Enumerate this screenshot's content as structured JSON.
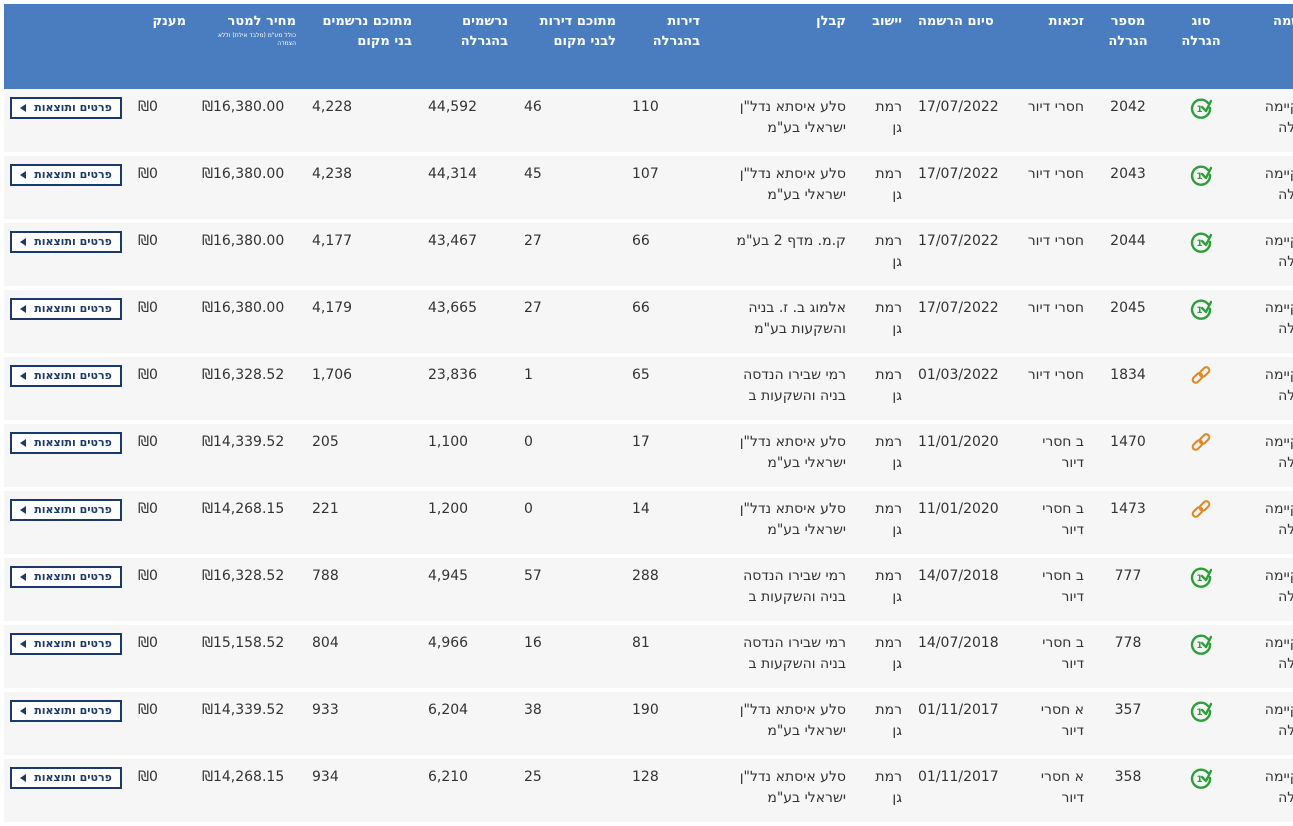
{
  "headers": {
    "registration": "הרשמה",
    "lottery_type": "סוג הגרלה",
    "lottery_number": "מספר הגרלה",
    "eligibility": "זכאות",
    "registration_end": "סיום הרשמה",
    "city": "יישוב",
    "contractor": "קבלן",
    "apartments": "דירות בהגרלה",
    "local_apartments": "מתוכם דירות לבני מקום",
    "registrants": "נרשמים בהגרלה",
    "local_registrants": "מתוכם נרשמים בני מקום",
    "price": "מחיר למטר",
    "price_note": "כולל מע\"מ (מלבד אילת) וללא הצמדה",
    "grant": "מענק"
  },
  "button_label": "פרטים ותוצאות",
  "colors": {
    "header_bg": "#4a7cc0",
    "check_icon": "#2e9e3a",
    "link_icon": "#e08a2a",
    "button_border": "#1b3a6b"
  },
  "rows": [
    {
      "status": "התקיימה הגרלה",
      "icon": "check-one-icon",
      "lot": "2042",
      "elig": "חסרי דיור",
      "end": "17/07/2022",
      "city": "רמת גן",
      "contractor": "סלע איסתא נדל\"ן ישראלי בע\"מ",
      "apts": "110",
      "local": "46",
      "regs": "44,592",
      "locregs": "4,228",
      "price": "₪16,380.00",
      "grant": "₪0"
    },
    {
      "status": "התקיימה הגרלה",
      "icon": "check-one-icon",
      "lot": "2043",
      "elig": "חסרי דיור",
      "end": "17/07/2022",
      "city": "רמת גן",
      "contractor": "סלע איסתא נדל\"ן ישראלי בע\"מ",
      "apts": "107",
      "local": "45",
      "regs": "44,314",
      "locregs": "4,238",
      "price": "₪16,380.00",
      "grant": "₪0"
    },
    {
      "status": "התקיימה הגרלה",
      "icon": "check-one-icon",
      "lot": "2044",
      "elig": "חסרי דיור",
      "end": "17/07/2022",
      "city": "רמת גן",
      "contractor": "ק.מ. מדף 2 בע\"מ",
      "apts": "66",
      "local": "27",
      "regs": "43,467",
      "locregs": "4,177",
      "price": "₪16,380.00",
      "grant": "₪0"
    },
    {
      "status": "התקיימה הגרלה",
      "icon": "check-one-icon",
      "lot": "2045",
      "elig": "חסרי דיור",
      "end": "17/07/2022",
      "city": "רמת גן",
      "contractor": "אלמוג ב. ז. בניה והשקעות בע\"מ",
      "apts": "66",
      "local": "27",
      "regs": "43,665",
      "locregs": "4,179",
      "price": "₪16,380.00",
      "grant": "₪0"
    },
    {
      "status": "התקיימה הגרלה",
      "icon": "link-icon",
      "lot": "1834",
      "elig": "חסרי דיור",
      "end": "01/03/2022",
      "city": "רמת גן",
      "contractor": "רמי שבירו הנדסה בניה והשקעות ב",
      "apts": "65",
      "local": "1",
      "regs": "23,836",
      "locregs": "1,706",
      "price": "₪16,328.52",
      "grant": "₪0"
    },
    {
      "status": "התקיימה הגרלה",
      "icon": "link-icon",
      "lot": "1470",
      "elig": "ב חסרי דיור",
      "end": "11/01/2020",
      "city": "רמת גן",
      "contractor": "סלע איסתא נדל\"ן ישראלי בע\"מ",
      "apts": "17",
      "local": "0",
      "regs": "1,100",
      "locregs": "205",
      "price": "₪14,339.52",
      "grant": "₪0"
    },
    {
      "status": "התקיימה הגרלה",
      "icon": "link-icon",
      "lot": "1473",
      "elig": "ב חסרי דיור",
      "end": "11/01/2020",
      "city": "רמת גן",
      "contractor": "סלע איסתא נדל\"ן ישראלי בע\"מ",
      "apts": "14",
      "local": "0",
      "regs": "1,200",
      "locregs": "221",
      "price": "₪14,268.15",
      "grant": "₪0"
    },
    {
      "status": "התקיימה הגרלה",
      "icon": "check-one-icon",
      "lot": "777",
      "elig": "ב חסרי דיור",
      "end": "14/07/2018",
      "city": "רמת גן",
      "contractor": "רמי שבירו הנדסה בניה והשקעות ב",
      "apts": "288",
      "local": "57",
      "regs": "4,945",
      "locregs": "788",
      "price": "₪16,328.52",
      "grant": "₪0"
    },
    {
      "status": "התקיימה הגרלה",
      "icon": "check-one-icon",
      "lot": "778",
      "elig": "ב חסרי דיור",
      "end": "14/07/2018",
      "city": "רמת גן",
      "contractor": "רמי שבירו הנדסה בניה והשקעות ב",
      "apts": "81",
      "local": "16",
      "regs": "4,966",
      "locregs": "804",
      "price": "₪15,158.52",
      "grant": "₪0"
    },
    {
      "status": "התקיימה הגרלה",
      "icon": "check-one-icon",
      "lot": "357",
      "elig": "א חסרי דיור",
      "end": "01/11/2017",
      "city": "רמת גן",
      "contractor": "סלע איסתא נדל\"ן ישראלי בע\"מ",
      "apts": "190",
      "local": "38",
      "regs": "6,204",
      "locregs": "933",
      "price": "₪14,339.52",
      "grant": "₪0"
    },
    {
      "status": "התקיימה הגרלה",
      "icon": "check-one-icon",
      "lot": "358",
      "elig": "א חסרי דיור",
      "end": "01/11/2017",
      "city": "רמת גן",
      "contractor": "סלע איסתא נדל\"ן ישראלי בע\"מ",
      "apts": "128",
      "local": "25",
      "regs": "6,210",
      "locregs": "934",
      "price": "₪14,268.15",
      "grant": "₪0"
    }
  ]
}
